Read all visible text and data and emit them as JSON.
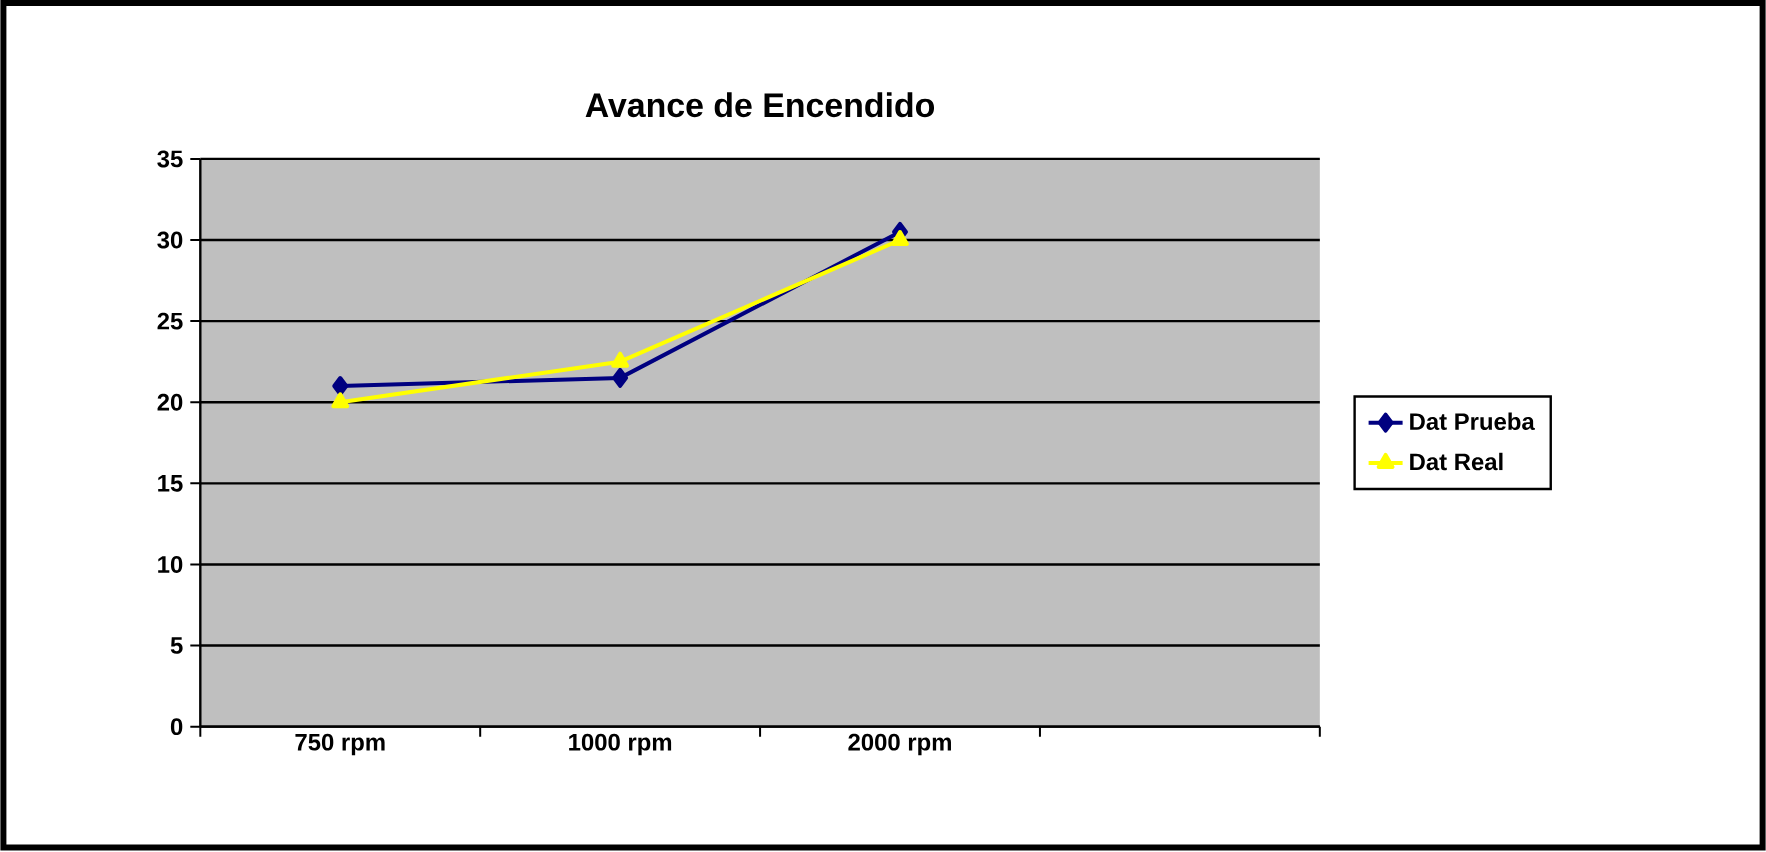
{
  "chart_data": {
    "type": "line",
    "title": "Avance de Encendido",
    "categories": [
      "750 rpm",
      "1000 rpm",
      "2000 rpm",
      null
    ],
    "series": [
      {
        "name": "Dat Prueba",
        "color": "#000080",
        "marker": "diamond",
        "values": [
          21,
          21.5,
          30.5,
          null
        ]
      },
      {
        "name": "Dat Real",
        "color": "#ffff00",
        "marker": "triangle",
        "values": [
          20,
          22.5,
          30,
          null
        ]
      }
    ],
    "ylim": [
      0,
      35
    ],
    "yticks": [
      0,
      5,
      10,
      15,
      20,
      25,
      30,
      35
    ],
    "grid": "y",
    "legend": "right"
  }
}
